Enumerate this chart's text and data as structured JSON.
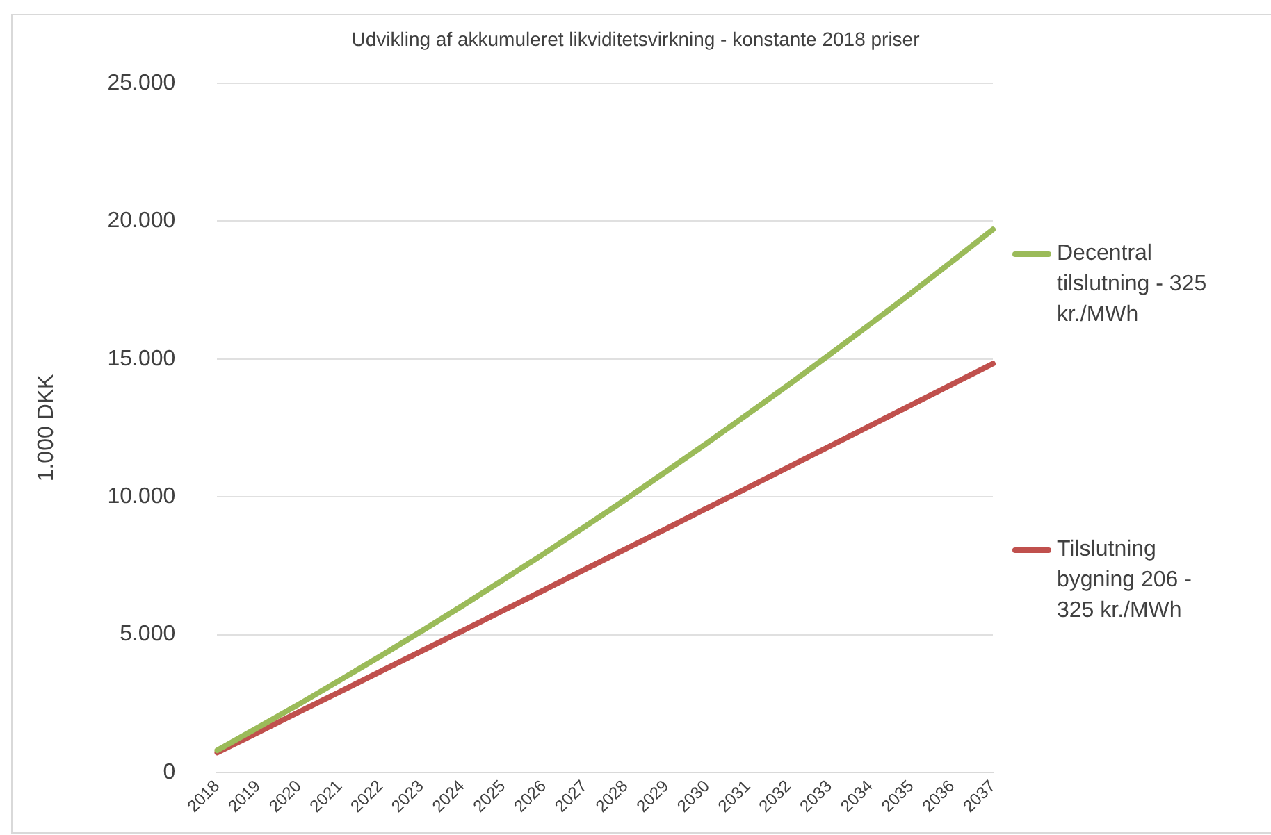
{
  "chart_data": {
    "type": "line",
    "title": "Udvikling af akkumuleret likviditetsvirkning - konstante 2018 priser",
    "ylabel": "1.000 DKK",
    "categories": [
      "2018",
      "2019",
      "2020",
      "2021",
      "2022",
      "2023",
      "2024",
      "2025",
      "2026",
      "2027",
      "2028",
      "2029",
      "2030",
      "2031",
      "2032",
      "2033",
      "2034",
      "2035",
      "2036",
      "2037"
    ],
    "series": [
      {
        "name": "Decentral tilslutning  - 325 kr./MWh",
        "color": "#9bbb59",
        "values": [
          800,
          1630,
          2470,
          3340,
          4220,
          5120,
          6040,
          6980,
          7930,
          8910,
          9900,
          10920,
          11950,
          13000,
          14070,
          15160,
          16270,
          17390,
          18540,
          19700
        ]
      },
      {
        "name": "Tilslutning bygning 206 - 325 kr./MWh",
        "color": "#c0504d",
        "values": [
          720,
          1450,
          2190,
          2920,
          3660,
          4400,
          5130,
          5870,
          6610,
          7360,
          8100,
          8840,
          9590,
          10330,
          11080,
          11830,
          12580,
          13330,
          14080,
          14830
        ]
      }
    ],
    "ylim": [
      0,
      25000
    ],
    "yticks": [
      {
        "value": 0,
        "label": "0"
      },
      {
        "value": 5000,
        "label": "5.000"
      },
      {
        "value": 10000,
        "label": "10.000"
      },
      {
        "value": 15000,
        "label": "15.000"
      },
      {
        "value": 20000,
        "label": "20.000"
      },
      {
        "value": 25000,
        "label": "25.000"
      }
    ],
    "grid": "y",
    "legend": "right",
    "marker": "none",
    "line_style": "solid"
  }
}
